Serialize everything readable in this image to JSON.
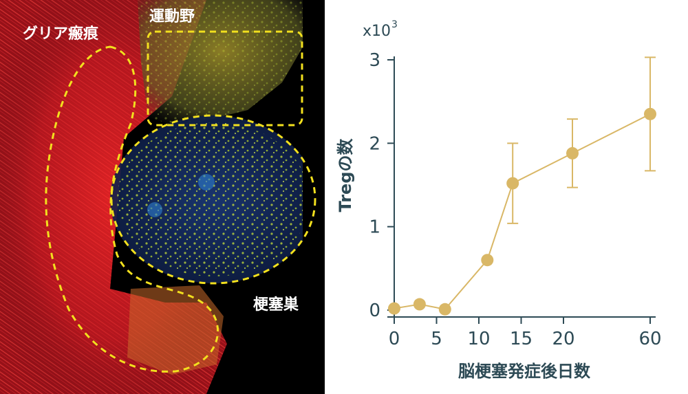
{
  "micrograph": {
    "labels": {
      "glial_scar": "グリア瘢痕",
      "motor_cortex": "運動野",
      "infarct_core": "梗塞巣"
    },
    "colors": {
      "background": "#000000",
      "scar_stain": "#e8242a",
      "treg_stain": "#c8e03a",
      "nuclei_stain": "#1b3f8a",
      "outline": "#f2e01e"
    }
  },
  "chart_data": {
    "type": "line",
    "x_label": "脳梗塞発症後日数",
    "y_label": "Tregの数",
    "y_multiplier_label": "x10",
    "y_multiplier_exponent": "3",
    "x_ticks": [
      "0",
      "5",
      "10",
      "15",
      "20",
      "60"
    ],
    "y_ticks": [
      "0",
      "1",
      "2",
      "3"
    ],
    "ylim": [
      0,
      3
    ],
    "x_axis_note": "non-linear axis: 15→20 compressed, break to 60",
    "points": [
      {
        "x": 0,
        "y": 0.02
      },
      {
        "x": 3,
        "y": 0.07
      },
      {
        "x": 6,
        "y": 0.01
      },
      {
        "x": 11,
        "y": 0.6
      },
      {
        "x": 14,
        "y": 1.52,
        "err": 0.48
      },
      {
        "x": 21,
        "y": 1.88,
        "err": 0.41
      },
      {
        "x": 60,
        "y": 2.35,
        "err": 0.68
      }
    ],
    "series_color": "#d9b766",
    "axis_color": "#2d4a55",
    "grid": false
  }
}
